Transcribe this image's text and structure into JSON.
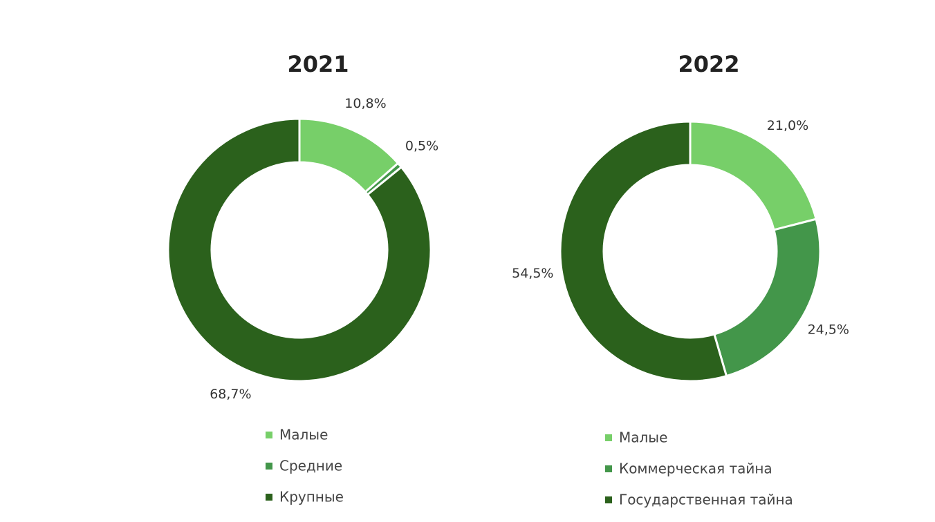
{
  "chart_data": [
    {
      "type": "donut",
      "title": "2021",
      "categories": [
        "Малые",
        "Средние",
        "Крупные"
      ],
      "values": [
        10.8,
        0.5,
        68.7
      ],
      "value_labels": [
        "10,8%",
        "0,5%",
        "68,7%"
      ],
      "colors": [
        "#77cf69",
        "#43964a",
        "#2b611c"
      ]
    },
    {
      "type": "donut",
      "title": "2022",
      "categories": [
        "Малые",
        "Коммерческая тайна",
        "Государственная тайна"
      ],
      "values": [
        21.0,
        24.5,
        54.5
      ],
      "value_labels": [
        "21,0%",
        "24,5%",
        "54,5%"
      ],
      "colors": [
        "#77cf69",
        "#43964a",
        "#2b611c"
      ]
    }
  ]
}
